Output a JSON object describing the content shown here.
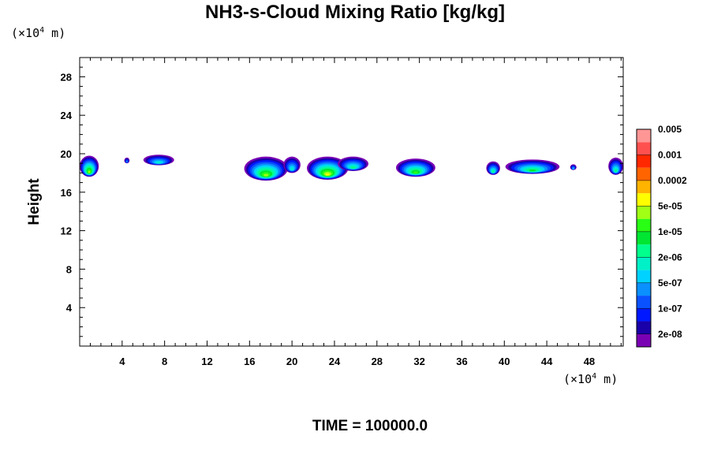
{
  "chart_data": {
    "type": "heatmap",
    "title": "NH3-s-Cloud Mixing Ratio [kg/kg]",
    "xlabel": "",
    "ylabel": "Height",
    "x_unit": {
      "prefix": "(×10",
      "exp": "4",
      "suffix": " m)"
    },
    "y_unit": {
      "prefix": "(×10",
      "exp": "4",
      "suffix": " m)"
    },
    "footer": "TIME = 100000.0",
    "xlim": [
      0,
      51.2
    ],
    "ylim": [
      0,
      30
    ],
    "xticks": [
      4,
      8,
      12,
      16,
      20,
      24,
      28,
      32,
      36,
      40,
      44,
      48
    ],
    "yticks": [
      4,
      8,
      12,
      16,
      20,
      24,
      28
    ],
    "grid": false,
    "colorbar": {
      "colors": [
        "#7a00b4",
        "#1a00a8",
        "#0018ff",
        "#0a52ff",
        "#0a90ff",
        "#00d2ff",
        "#00f0c8",
        "#00ff8c",
        "#00e632",
        "#28ff14",
        "#a0ff14",
        "#ffff00",
        "#ffb400",
        "#ff6400",
        "#ff2800",
        "#ff5050",
        "#ff9696"
      ],
      "labels": [
        "2e-08",
        "1e-07",
        "5e-07",
        "2e-06",
        "1e-05",
        "5e-05",
        "0.0002",
        "0.001",
        "0.005"
      ]
    },
    "clouds": [
      {
        "x": [
          0.0,
          1.8
        ],
        "y": [
          17.6,
          19.8
        ],
        "peak": 10
      },
      {
        "x": [
          4.2,
          4.7
        ],
        "y": [
          19.0,
          19.6
        ],
        "peak": 4
      },
      {
        "x": [
          6.0,
          8.9
        ],
        "y": [
          18.8,
          19.9
        ],
        "peak": 6
      },
      {
        "x": [
          15.5,
          19.6
        ],
        "y": [
          17.2,
          19.7
        ],
        "peak": 10
      },
      {
        "x": [
          19.2,
          20.8
        ],
        "y": [
          18.0,
          19.7
        ],
        "peak": 6
      },
      {
        "x": [
          21.4,
          25.3
        ],
        "y": [
          17.3,
          19.7
        ],
        "peak": 11
      },
      {
        "x": [
          24.3,
          27.2
        ],
        "y": [
          18.2,
          19.7
        ],
        "peak": 7
      },
      {
        "x": [
          29.8,
          33.5
        ],
        "y": [
          17.6,
          19.5
        ],
        "peak": 9
      },
      {
        "x": [
          38.3,
          39.6
        ],
        "y": [
          17.8,
          19.2
        ],
        "peak": 7
      },
      {
        "x": [
          40.1,
          45.2
        ],
        "y": [
          17.9,
          19.4
        ],
        "peak": 8
      },
      {
        "x": [
          46.2,
          46.8
        ],
        "y": [
          18.3,
          18.9
        ],
        "peak": 5
      },
      {
        "x": [
          49.8,
          51.2
        ],
        "y": [
          17.8,
          19.6
        ],
        "peak": 7
      }
    ]
  }
}
